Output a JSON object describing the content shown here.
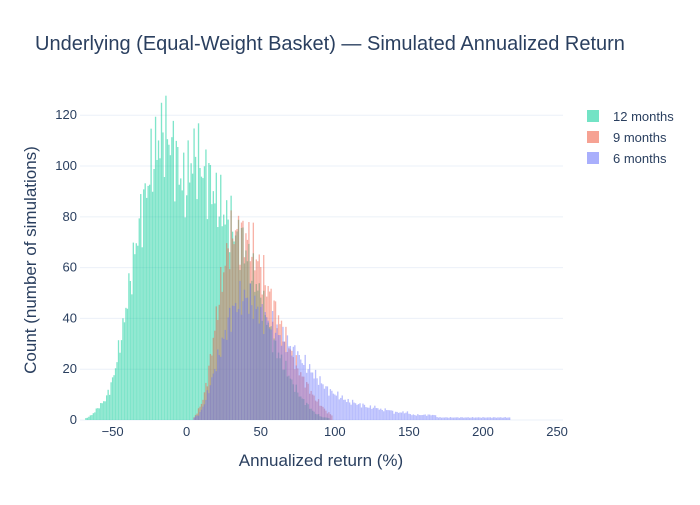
{
  "chart_data": {
    "type": "bar",
    "title": "Underlying (Equal-Weight Basket) — Simulated Annualized Return",
    "xlabel": "Annualized return (%)",
    "ylabel": "Count (number of simulations)",
    "xlim": [
      -72,
      254
    ],
    "ylim": [
      0,
      126
    ],
    "xticks": [
      -50,
      0,
      50,
      100,
      150,
      200,
      250
    ],
    "xtick_labels": [
      "−50",
      "0",
      "50",
      "100",
      "150",
      "200",
      "250"
    ],
    "yticks": [
      0,
      20,
      40,
      60,
      80,
      100,
      120
    ],
    "ytick_labels": [
      "0",
      "20",
      "40",
      "60",
      "80",
      "100",
      "120"
    ],
    "grid": true,
    "legend_position": "top-right",
    "bar_width": 0.9,
    "series": [
      {
        "name": "12 months",
        "color": "#00cc96",
        "opacity": 0.5,
        "x": [
          -70,
          -67,
          -64,
          -61,
          -58,
          -55,
          -52,
          -49,
          -46,
          -43,
          -40,
          -37,
          -34,
          -31,
          -28,
          -25,
          -22,
          -19,
          -16,
          -13,
          -10,
          -7,
          -4,
          -1,
          2,
          5,
          8,
          11,
          14,
          17,
          20,
          23,
          26,
          29,
          32,
          35,
          38,
          41,
          44,
          47,
          50,
          53,
          56,
          59,
          62,
          65,
          68,
          71,
          74,
          77,
          80,
          83,
          86,
          89,
          92,
          95,
          98
        ],
        "y": [
          0,
          1,
          2,
          4,
          6,
          8,
          12,
          18,
          27,
          36,
          48,
          58,
          70,
          80,
          88,
          97,
          104,
          110,
          113,
          112,
          108,
          103,
          96,
          90,
          100,
          104,
          102,
          98,
          96,
          92,
          86,
          84,
          80,
          78,
          74,
          72,
          70,
          64,
          58,
          54,
          48,
          42,
          36,
          30,
          26,
          22,
          19,
          15,
          12,
          9,
          7,
          5,
          3,
          2,
          1,
          1,
          0
        ]
      },
      {
        "name": "9 months",
        "color": "#ef553b",
        "opacity": 0.45,
        "x": [
          5,
          8,
          11,
          14,
          17,
          20,
          23,
          26,
          29,
          32,
          35,
          38,
          41,
          44,
          47,
          50,
          53,
          56,
          59,
          62,
          65,
          68,
          71,
          74,
          77,
          80,
          83,
          86,
          89,
          92,
          95,
          98
        ],
        "y": [
          1,
          4,
          8,
          16,
          28,
          40,
          52,
          62,
          70,
          74,
          74,
          72,
          72,
          68,
          64,
          60,
          54,
          50,
          44,
          40,
          34,
          30,
          26,
          22,
          18,
          15,
          12,
          9,
          7,
          5,
          3,
          2
        ]
      },
      {
        "name": "6 months",
        "color": "#636efa",
        "opacity": 0.45,
        "x": [
          5,
          8,
          11,
          14,
          17,
          20,
          23,
          26,
          29,
          32,
          35,
          38,
          41,
          44,
          47,
          50,
          53,
          56,
          59,
          62,
          65,
          68,
          71,
          74,
          77,
          80,
          83,
          86,
          89,
          92,
          95,
          98,
          101,
          104,
          107,
          110,
          113,
          116,
          119,
          122,
          125,
          128,
          131,
          134,
          137,
          140,
          143,
          146,
          149,
          152,
          155,
          158,
          161,
          164,
          167,
          170,
          173,
          176,
          179,
          182,
          185,
          188,
          191,
          194,
          197,
          200,
          203,
          206,
          209,
          212,
          215,
          218
        ],
        "y": [
          1,
          2,
          5,
          10,
          16,
          22,
          28,
          34,
          40,
          44,
          46,
          48,
          48,
          46,
          44,
          42,
          40,
          38,
          36,
          34,
          32,
          30,
          28,
          26,
          24,
          22,
          20,
          18,
          16,
          14,
          12,
          11,
          10,
          9,
          8,
          7,
          7,
          6,
          6,
          5,
          5,
          5,
          4,
          4,
          4,
          3,
          3,
          3,
          3,
          2,
          2,
          2,
          2,
          2,
          2,
          1,
          1,
          1,
          1,
          1,
          1,
          1,
          1,
          1,
          1,
          1,
          1,
          1,
          1,
          1,
          1,
          1
        ]
      }
    ]
  }
}
